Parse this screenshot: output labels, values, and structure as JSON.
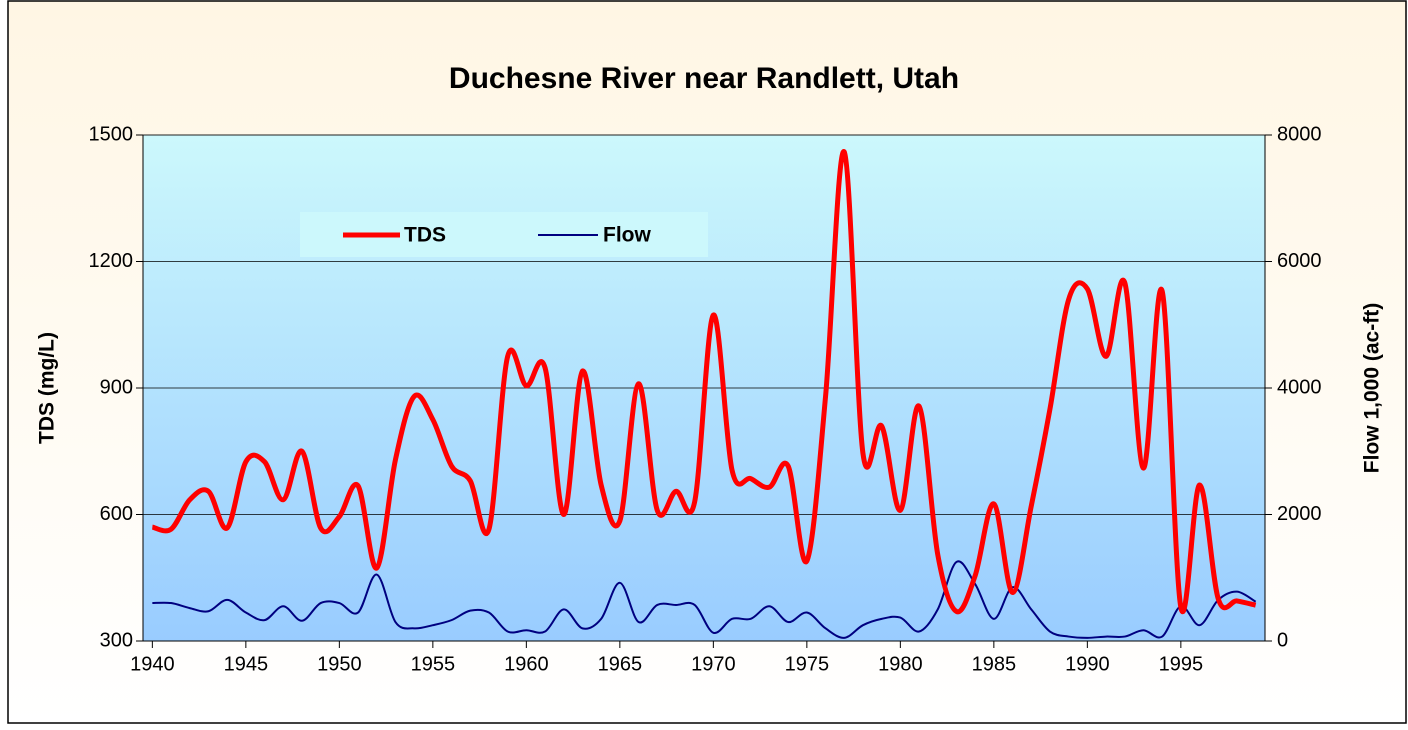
{
  "chart_data": {
    "type": "line",
    "title": "Duchesne River near Randlett, Utah",
    "y_label": "TDS (mg/L)",
    "y2_label": "Flow 1,000 (ac-ft)",
    "x": [
      1940,
      1941,
      1942,
      1943,
      1944,
      1945,
      1946,
      1947,
      1948,
      1949,
      1950,
      1951,
      1952,
      1953,
      1954,
      1955,
      1956,
      1957,
      1958,
      1959,
      1960,
      1961,
      1962,
      1963,
      1964,
      1965,
      1966,
      1967,
      1968,
      1969,
      1970,
      1971,
      1972,
      1973,
      1974,
      1975,
      1976,
      1977,
      1978,
      1979,
      1980,
      1981,
      1982,
      1983,
      1984,
      1985,
      1986,
      1987,
      1988,
      1989,
      1990,
      1991,
      1992,
      1993,
      1994,
      1995,
      1996,
      1997,
      1998,
      1999
    ],
    "series": [
      {
        "name": "TDS",
        "color": "#ff0000",
        "axis": "y",
        "values": [
          570,
          565,
          635,
          655,
          568,
          725,
          725,
          635,
          750,
          568,
          595,
          668,
          473,
          730,
          880,
          825,
          715,
          680,
          565,
          975,
          905,
          948,
          600,
          940,
          670,
          585,
          910,
          610,
          655,
          630,
          1073,
          705,
          685,
          665,
          715,
          490,
          880,
          1460,
          745,
          810,
          610,
          857,
          505,
          370,
          455,
          625,
          415,
          620,
          850,
          1110,
          1135,
          975,
          1150,
          710,
          1130,
          380,
          670,
          400,
          395,
          385
        ]
      },
      {
        "name": "Flow",
        "color": "#000080",
        "axis": "y2",
        "values": [
          600,
          600,
          520,
          470,
          650,
          450,
          330,
          550,
          320,
          600,
          600,
          450,
          1050,
          300,
          200,
          250,
          330,
          480,
          450,
          150,
          170,
          150,
          500,
          200,
          350,
          920,
          300,
          570,
          570,
          570,
          130,
          350,
          350,
          550,
          300,
          450,
          200,
          50,
          250,
          350,
          370,
          150,
          500,
          1250,
          900,
          350,
          850,
          500,
          150,
          70,
          50,
          70,
          70,
          170,
          70,
          550,
          250,
          650,
          780,
          620
        ]
      }
    ],
    "xlim": [
      1939.5,
      1999.5
    ],
    "xticks": [
      1940,
      1945,
      1950,
      1955,
      1960,
      1965,
      1970,
      1975,
      1980,
      1985,
      1990,
      1995
    ],
    "ylim": [
      300,
      1500
    ],
    "yticks": [
      300,
      600,
      900,
      1200,
      1500
    ],
    "y2lim": [
      0,
      8000
    ],
    "y2ticks": [
      0,
      2000,
      4000,
      6000,
      8000
    ],
    "grid": true
  }
}
